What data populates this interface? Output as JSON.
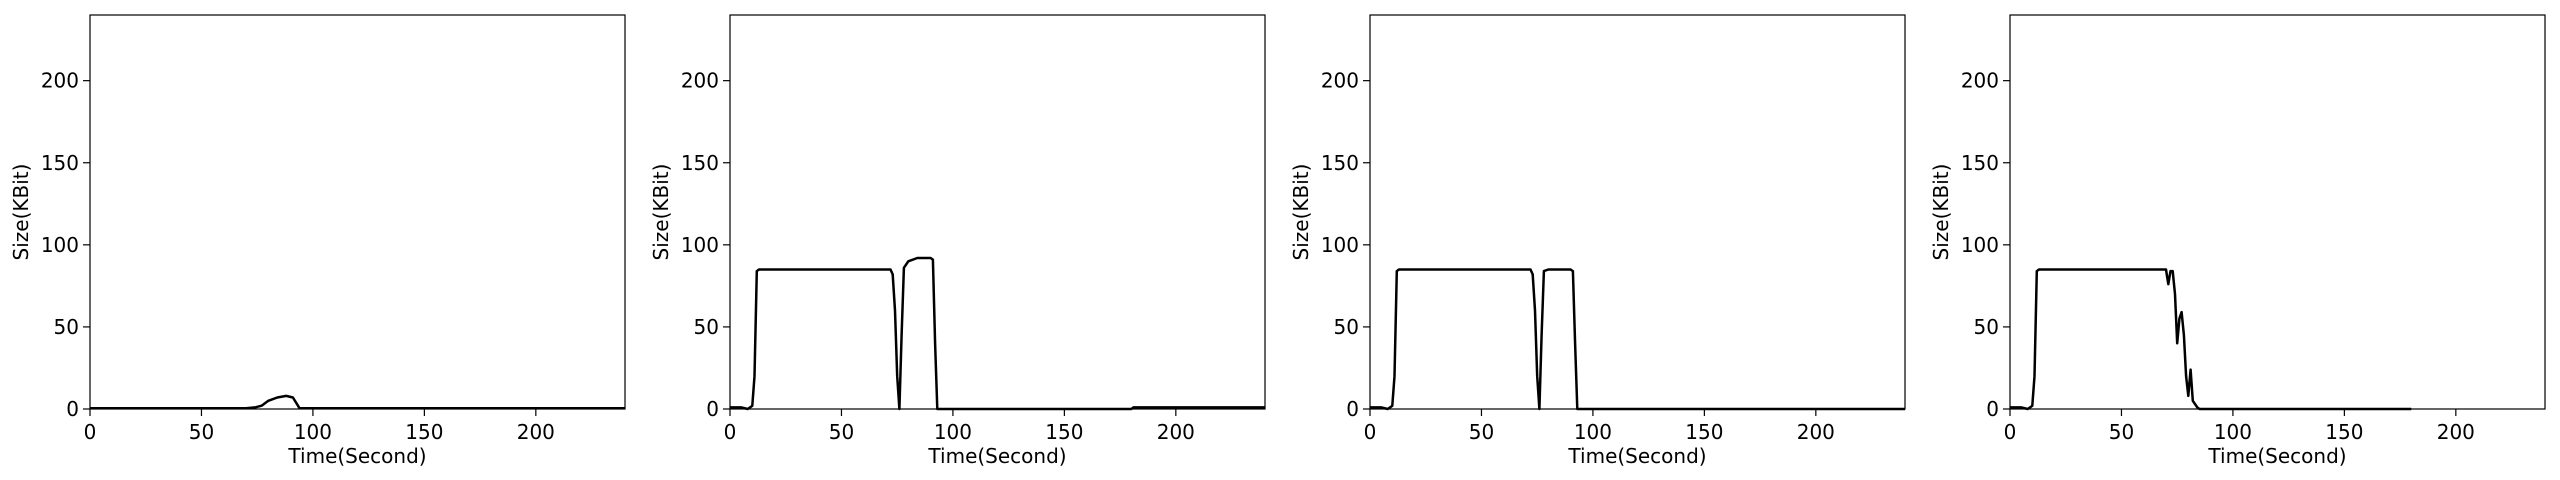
{
  "chart_data": [
    {
      "type": "line",
      "xlabel": "Time(Second)",
      "ylabel": "Size(KBit)",
      "xlim": [
        0,
        240
      ],
      "ylim": [
        0,
        240
      ],
      "xticks": [
        0,
        50,
        100,
        150,
        200
      ],
      "yticks": [
        0,
        50,
        100,
        150,
        200
      ],
      "grid": false,
      "series": [
        {
          "color": "#000000",
          "x": [
            0,
            10,
            20,
            30,
            40,
            50,
            60,
            70,
            74,
            77,
            80,
            84,
            88,
            91,
            94,
            100,
            120,
            150,
            180,
            200,
            220,
            240
          ],
          "y": [
            0.5,
            0.5,
            0.5,
            0.5,
            0.5,
            0.5,
            0.5,
            0.5,
            1,
            2,
            5,
            7,
            8,
            7,
            0.5,
            0.5,
            0.5,
            0.5,
            0.5,
            0.5,
            0.5,
            0.5
          ]
        }
      ]
    },
    {
      "type": "line",
      "xlabel": "Time(Second)",
      "ylabel": "Size(KBit)",
      "xlim": [
        0,
        240
      ],
      "ylim": [
        0,
        240
      ],
      "xticks": [
        0,
        50,
        100,
        150,
        200
      ],
      "yticks": [
        0,
        50,
        100,
        150,
        200
      ],
      "grid": false,
      "series": [
        {
          "color": "#000000",
          "x": [
            0,
            5,
            8,
            10,
            11,
            12,
            13,
            20,
            30,
            40,
            50,
            60,
            70,
            72,
            73,
            74,
            75,
            76,
            77,
            78,
            80,
            84,
            88,
            90,
            91,
            92,
            93,
            100,
            150,
            180,
            181,
            200,
            240
          ],
          "y": [
            1,
            1,
            0,
            2,
            20,
            84,
            85,
            85,
            85,
            85,
            85,
            85,
            85,
            85,
            82,
            60,
            20,
            0,
            45,
            86,
            90,
            92,
            92,
            92,
            91,
            40,
            0,
            0,
            0,
            0,
            1,
            1,
            1
          ]
        }
      ]
    },
    {
      "type": "line",
      "xlabel": "Time(Second)",
      "ylabel": "Size(KBit)",
      "xlim": [
        0,
        240
      ],
      "ylim": [
        0,
        240
      ],
      "xticks": [
        0,
        50,
        100,
        150,
        200
      ],
      "yticks": [
        0,
        50,
        100,
        150,
        200
      ],
      "grid": false,
      "series": [
        {
          "color": "#000000",
          "x": [
            0,
            5,
            8,
            10,
            11,
            12,
            13,
            20,
            30,
            40,
            50,
            60,
            70,
            72,
            73,
            74,
            75,
            76,
            77,
            78,
            80,
            84,
            88,
            90,
            91,
            92,
            93,
            100,
            150,
            200,
            240
          ],
          "y": [
            1,
            1,
            0,
            2,
            20,
            84,
            85,
            85,
            85,
            85,
            85,
            85,
            85,
            85,
            82,
            60,
            20,
            0,
            45,
            84,
            85,
            85,
            85,
            85,
            84,
            40,
            0,
            0,
            0,
            0,
            0
          ]
        }
      ]
    },
    {
      "type": "line",
      "xlabel": "Time(Second)",
      "ylabel": "Size(KBit)",
      "xlim": [
        0,
        240
      ],
      "ylim": [
        0,
        240
      ],
      "xticks": [
        0,
        50,
        100,
        150,
        200
      ],
      "yticks": [
        0,
        50,
        100,
        150,
        200
      ],
      "grid": false,
      "series": [
        {
          "color": "#000000",
          "x": [
            0,
            5,
            8,
            10,
            11,
            12,
            13,
            20,
            30,
            40,
            50,
            60,
            68,
            70,
            71,
            72,
            73,
            74,
            75,
            76,
            77,
            78,
            79,
            80,
            81,
            82,
            83,
            84,
            85,
            90,
            100,
            150,
            180
          ],
          "y": [
            1,
            1,
            0,
            2,
            20,
            84,
            85,
            85,
            85,
            85,
            85,
            85,
            85,
            85,
            76,
            84,
            84,
            70,
            40,
            55,
            59,
            45,
            20,
            8,
            24,
            5,
            3,
            1,
            0,
            0,
            0,
            0,
            0
          ]
        }
      ]
    }
  ]
}
